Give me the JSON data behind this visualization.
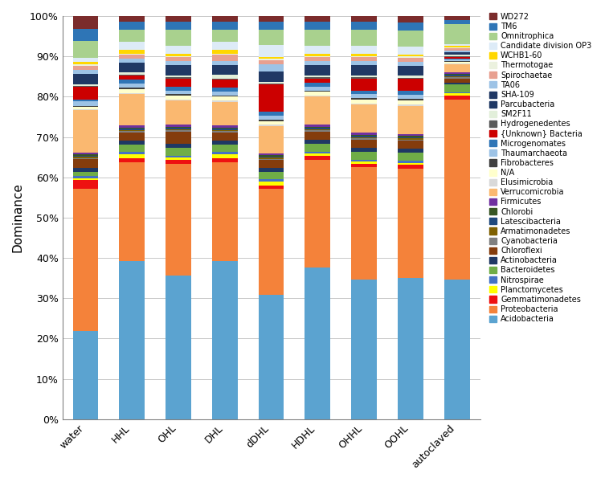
{
  "categories": [
    "water",
    "HHL",
    "OHL",
    "DHL",
    "dDHL",
    "HDHL",
    "OHHL",
    "OOHL",
    "autoclaved"
  ],
  "taxa": [
    "Acidobacteria",
    "Proteobacteria",
    "Gemmatimonadetes",
    "Planctomycetes",
    "Nitrospirae",
    "Bacteroidetes",
    "Actinobacteria",
    "Chloroflexi",
    "Cyanobacteria",
    "Armatimonadetes",
    "Latescibacteria",
    "Chlorobi",
    "Firmicutes",
    "Verrucomicrobia",
    "Elusimicrobia",
    "N/A",
    "Fibrobacteres",
    "Thaumarchaeota",
    "Microgenomates",
    "{Unknown} Bacteria",
    "Hydrogenedentes",
    "SM2F11",
    "Parcubacteria",
    "SHA-109",
    "TA06",
    "Spirochaetae",
    "Thermotogae",
    "WCHB1-60",
    "Candidate division OP3",
    "Omnitrophica",
    "TM6",
    "WD272"
  ],
  "colors": [
    "#4BACC6",
    "#F79646",
    "#FF0000",
    "#FFFF00",
    "#4F81BD",
    "#9BBB59",
    "#17375E",
    "#974706",
    "#595959",
    "#7F6000",
    "#17375E",
    "#4F6228",
    "#604A7B",
    "#FAC090",
    "#BFBFBF",
    "#FFFFCC",
    "#215868",
    "#92CDDC",
    "#558ED5",
    "#C0504D",
    "#3F3F3F",
    "#DDD9C3",
    "#243F60",
    "#1F3864",
    "#95B3D7",
    "#D99694",
    "#EBF1DE",
    "#FFC000",
    "#C5D9F1",
    "#75923C",
    "#17375E",
    "#632523"
  ],
  "data": {
    "water": [
      21,
      34,
      2,
      0.5,
      0.5,
      1,
      1,
      2,
      0.3,
      0.3,
      0.3,
      0.3,
      0.5,
      10,
      0.3,
      0.5,
      0.3,
      1,
      0.5,
      3,
      0.3,
      0.3,
      0.5,
      2,
      1,
      1,
      0.3,
      0.5,
      1,
      4,
      3,
      3
    ],
    "HHL": [
      40,
      25,
      1,
      1,
      0.5,
      2,
      1,
      2,
      0.3,
      0.3,
      0.3,
      0.3,
      0.5,
      8,
      0.3,
      1,
      0.3,
      1,
      1,
      1,
      0.3,
      0.5,
      0.5,
      2,
      1,
      1,
      0.3,
      1,
      2,
      3,
      2,
      1.5
    ],
    "OHL": [
      36,
      28,
      1,
      0.5,
      0.5,
      2,
      1,
      3,
      0.3,
      0.3,
      0.3,
      0.3,
      0.5,
      6,
      0.3,
      1,
      0.3,
      1,
      1,
      2,
      0.3,
      0.5,
      0.5,
      2,
      1,
      1,
      0.3,
      0.5,
      2,
      4,
      2,
      1.5
    ],
    "DHL": [
      40,
      25,
      1,
      1,
      0.5,
      2,
      1,
      2,
      0.3,
      0.3,
      0.3,
      0.3,
      0.5,
      6,
      0.3,
      1,
      0.3,
      1,
      1,
      2,
      0.3,
      1,
      0.5,
      2,
      1,
      1.5,
      0.3,
      1,
      2,
      3,
      2,
      1.5
    ],
    "dDHL": [
      32,
      27,
      1,
      1,
      0.5,
      2,
      1,
      2,
      0.3,
      0.3,
      0.3,
      0.3,
      0.5,
      7,
      0.3,
      1,
      0.3,
      1,
      1,
      7,
      0.3,
      0.5,
      0.5,
      2,
      2,
      1,
      0.3,
      0.5,
      3,
      4,
      2,
      1.5
    ],
    "HDHL": [
      38,
      27,
      1,
      0.5,
      0.5,
      2,
      1,
      2,
      0.3,
      0.3,
      0.3,
      0.3,
      0.5,
      7,
      0.3,
      1,
      0.3,
      1,
      1,
      1,
      0.3,
      0.5,
      0.5,
      2,
      1,
      1,
      0.3,
      0.5,
      2,
      4,
      2,
      1.5
    ],
    "OHHL": [
      35,
      28,
      1,
      0.5,
      0.5,
      2,
      1,
      2,
      0.3,
      0.3,
      0.3,
      0.3,
      0.5,
      7,
      0.3,
      1,
      0.3,
      1,
      1,
      3,
      0.3,
      0.5,
      0.5,
      2,
      1,
      1,
      0.3,
      0.5,
      2,
      4,
      2,
      1.5
    ],
    "OOHL": [
      35,
      27,
      1,
      0.5,
      0.5,
      2,
      1,
      2,
      0.3,
      0.3,
      0.3,
      0.3,
      0.5,
      7,
      0.3,
      1,
      0.3,
      1,
      1,
      3,
      0.3,
      0.5,
      0.5,
      2,
      1,
      1,
      0.3,
      0.5,
      2,
      4,
      2,
      1.5
    ],
    "autoclaved": [
      35,
      45,
      1,
      0.5,
      0.3,
      2,
      0.5,
      1,
      0.3,
      0.3,
      0.3,
      0.3,
      0.3,
      2,
      0.3,
      0.3,
      0.3,
      0.3,
      0.3,
      0.3,
      0.3,
      0.3,
      0.3,
      0.3,
      0.5,
      0.5,
      0.3,
      0.3,
      0.5,
      5,
      1,
      1
    ]
  },
  "legend_taxa": [
    "WD272",
    "TM6",
    "Omnitrophica",
    "Candidate division OP3",
    "WCHB1-60",
    "Thermotogae",
    "Spirochaetae",
    "TA06",
    "SHA-109",
    "Parcubacteria",
    "SM2F11",
    "Hydrogenedentes",
    "{Unknown} Bacteria",
    "Microgenomates",
    "Thaumarchaeota",
    "Fibrobacteres",
    "N/A",
    "Elusimicrobia",
    "Verrucomicrobia",
    "Firmicutes",
    "Chlorobi",
    "Latescibacteria",
    "Armatimonadetes",
    "Cyanobacteria",
    "Chloroflexi",
    "Actinobacteria",
    "Bacteroidetes",
    "Nitrospirae",
    "Planctomycetes",
    "Gemmatimonadetes",
    "Proteobacteria",
    "Acidobacteria"
  ],
  "ylabel": "Dominance",
  "background_color": "#ffffff",
  "grid_color": "#c8c8c8"
}
